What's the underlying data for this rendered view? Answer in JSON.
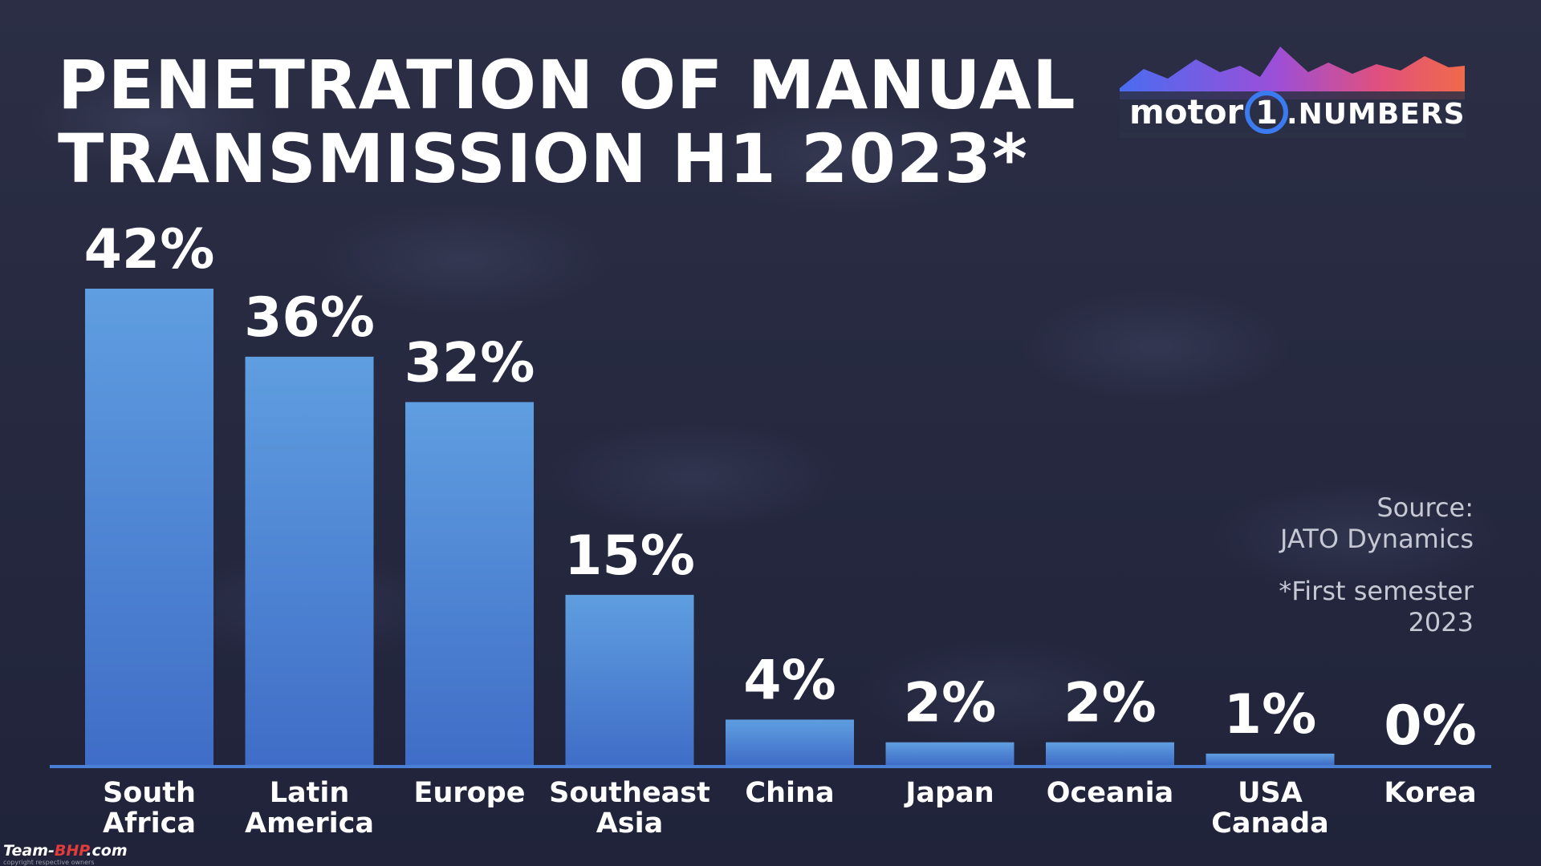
{
  "title_lines": [
    "PENETRATION OF MANUAL",
    "TRANSMISSION H1 2023*"
  ],
  "logo": {
    "brand": "motor",
    "numeral": "1",
    "suffix": ".NUMBERS"
  },
  "notes": {
    "source_label": "Source:",
    "source_name": "JATO Dynamics",
    "footnote_line1": "*First semester",
    "footnote_line2": "2023"
  },
  "watermark": {
    "brand_part1": "Team-",
    "brand_part2": "BHP",
    "brand_part3": ".com",
    "copyright": "copyright respective owners"
  },
  "colors": {
    "bar_top": "#5f9ee0",
    "bar_bottom": "#3f6dc7",
    "axis": "#4a7fd6",
    "background": "#262940"
  },
  "chart_data": {
    "type": "bar",
    "title": "PENETRATION OF MANUAL TRANSMISSION H1 2023*",
    "xlabel": "",
    "ylabel": "",
    "unit": "%",
    "ylim": [
      0,
      42
    ],
    "grid": false,
    "legend": "none",
    "categories": [
      [
        "South",
        "Africa"
      ],
      [
        "Latin",
        "America"
      ],
      [
        "Europe"
      ],
      [
        "Southeast",
        "Asia"
      ],
      [
        "China"
      ],
      [
        "Japan"
      ],
      [
        "Oceania"
      ],
      [
        "USA",
        "Canada"
      ],
      [
        "Korea"
      ]
    ],
    "values": [
      42,
      36,
      32,
      15,
      4,
      2,
      2,
      1,
      0
    ],
    "value_labels": [
      "42%",
      "36%",
      "32%",
      "15%",
      "4%",
      "2%",
      "2%",
      "1%",
      "0%"
    ]
  }
}
